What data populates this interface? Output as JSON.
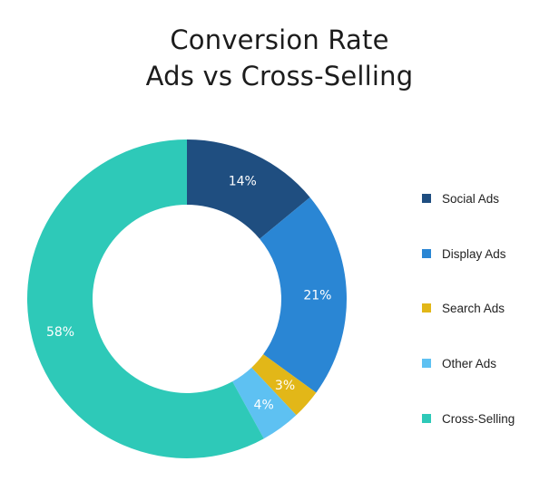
{
  "title": {
    "line1": "Conversion Rate",
    "line2": "Ads vs Cross-Selling"
  },
  "chart_data": {
    "type": "pie",
    "subtype": "donut",
    "title": "Conversion Rate Ads vs Cross-Selling",
    "categories": [
      "Social Ads",
      "Display Ads",
      "Search Ads",
      "Other Ads",
      "Cross-Selling"
    ],
    "values": [
      14,
      21,
      3,
      4,
      58
    ],
    "labels": [
      "14%",
      "21%",
      "3%",
      "4%",
      "58%"
    ],
    "colors": [
      "#1f4e80",
      "#2a86d4",
      "#e2b718",
      "#5ec1f2",
      "#2ec9b8"
    ],
    "unit": "%",
    "start_angle_deg": 0,
    "direction": "clockwise",
    "legend_position": "right"
  },
  "legend": {
    "items": [
      {
        "label": "Social Ads",
        "color": "#1f4e80"
      },
      {
        "label": "Display Ads",
        "color": "#2a86d4"
      },
      {
        "label": "Search Ads",
        "color": "#e2b718"
      },
      {
        "label": "Other Ads",
        "color": "#5ec1f2"
      },
      {
        "label": "Cross-Selling",
        "color": "#2ec9b8"
      }
    ]
  }
}
